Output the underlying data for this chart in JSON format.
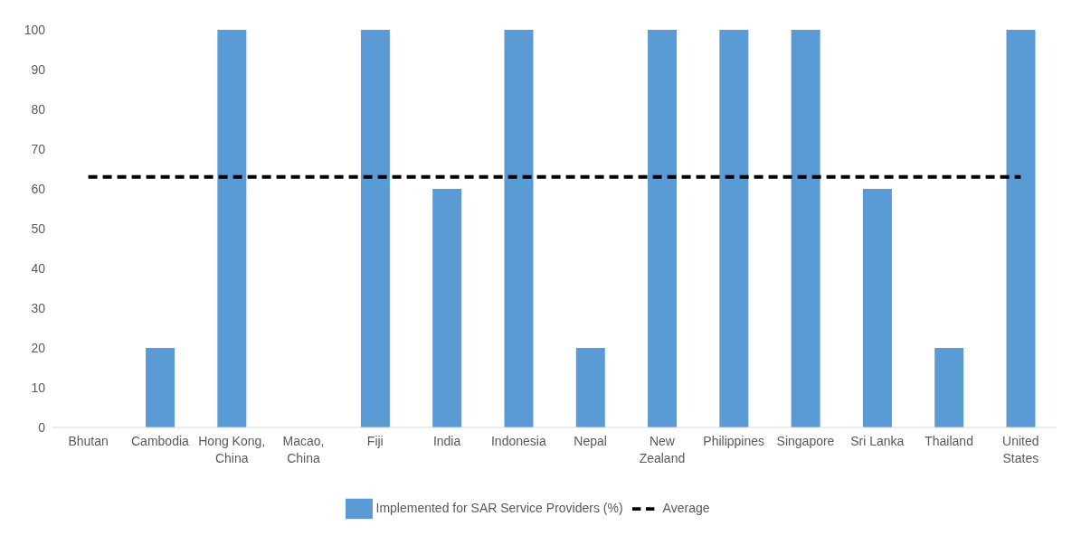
{
  "chart_data": {
    "type": "bar",
    "categories": [
      "Bhutan",
      "Cambodia",
      "Hong Kong, China",
      "Macao, China",
      "Fiji",
      "India",
      "Indonesia",
      "Nepal",
      "New Zealand",
      "Philippines",
      "Singapore",
      "Sri Lanka",
      "Thailand",
      "United States"
    ],
    "series": [
      {
        "name": "Implemented for SAR Service Providers (%)",
        "color": "#5b9bd5",
        "values": [
          0,
          20,
          100,
          0,
          100,
          60,
          100,
          20,
          100,
          100,
          100,
          60,
          20,
          100
        ]
      },
      {
        "name": "Average",
        "type": "line",
        "color": "#000000",
        "line_style": "dashed",
        "marker": "none",
        "values": [
          63,
          63,
          63,
          63,
          63,
          63,
          63,
          63,
          63,
          63,
          63,
          63,
          63,
          63
        ]
      }
    ],
    "ylim": [
      0,
      100
    ],
    "yticks": [
      0,
      10,
      20,
      30,
      40,
      50,
      60,
      70,
      80,
      90,
      100
    ],
    "grid": false,
    "legend": "bottom"
  }
}
